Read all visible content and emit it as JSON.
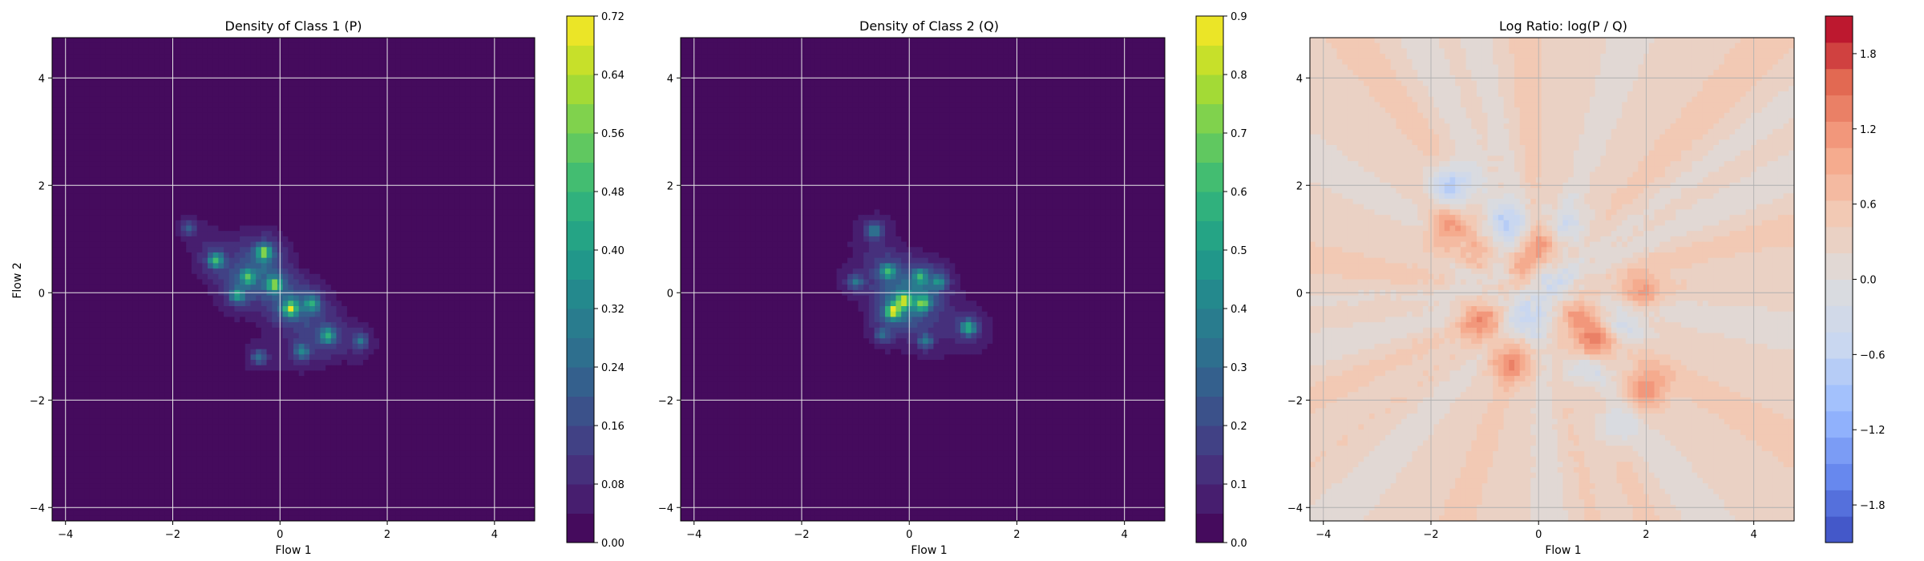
{
  "figure": {
    "background": "#ffffff"
  },
  "chart_data": [
    {
      "type": "heatmap",
      "title": "Density of Class 1 (P)",
      "xlabel": "Flow 1",
      "ylabel": "Flow 2",
      "xlim": [
        -4.25,
        4.75
      ],
      "ylim": [
        -4.25,
        4.75
      ],
      "xticks": [
        -4,
        -2,
        0,
        2,
        4
      ],
      "yticks": [
        -4,
        -2,
        0,
        2,
        4
      ],
      "grid": true,
      "colormap": "viridis",
      "colorbar": {
        "min": 0.0,
        "max": 0.72,
        "ticks": [
          "0.00",
          "0.08",
          "0.16",
          "0.24",
          "0.32",
          "0.40",
          "0.48",
          "0.56",
          "0.64",
          "0.72"
        ],
        "levels": 18
      },
      "background_color": "#440154",
      "density_modes": [
        {
          "x": -1.2,
          "y": 0.6,
          "peak": 0.45
        },
        {
          "x": -0.3,
          "y": 0.75,
          "peak": 0.55
        },
        {
          "x": -0.6,
          "y": 0.3,
          "peak": 0.4
        },
        {
          "x": -0.1,
          "y": 0.15,
          "peak": 0.5
        },
        {
          "x": 0.2,
          "y": -0.3,
          "peak": 0.55
        },
        {
          "x": -0.8,
          "y": -0.05,
          "peak": 0.35
        },
        {
          "x": 0.6,
          "y": -0.2,
          "peak": 0.35
        },
        {
          "x": 0.9,
          "y": -0.8,
          "peak": 0.4
        },
        {
          "x": 0.4,
          "y": -1.1,
          "peak": 0.3
        },
        {
          "x": -0.4,
          "y": -1.2,
          "peak": 0.25
        },
        {
          "x": 1.5,
          "y": -0.9,
          "peak": 0.25
        },
        {
          "x": -1.7,
          "y": 1.2,
          "peak": 0.18
        }
      ]
    },
    {
      "type": "heatmap",
      "title": "Density of Class 2 (Q)",
      "xlabel": "Flow 1",
      "ylabel": "",
      "xlim": [
        -4.25,
        4.75
      ],
      "ylim": [
        -4.25,
        4.75
      ],
      "xticks": [
        -4,
        -2,
        0,
        2,
        4
      ],
      "yticks": [
        -4,
        -2,
        0,
        2,
        4
      ],
      "grid": true,
      "colormap": "viridis",
      "colorbar": {
        "min": 0.0,
        "max": 0.9,
        "ticks": [
          "0.0",
          "0.1",
          "0.2",
          "0.3",
          "0.4",
          "0.5",
          "0.6",
          "0.7",
          "0.8",
          "0.9"
        ],
        "levels": 18
      },
      "background_color": "#440154",
      "density_modes": [
        {
          "x": -0.65,
          "y": 1.15,
          "peak": 0.35
        },
        {
          "x": -0.4,
          "y": 0.4,
          "peak": 0.55
        },
        {
          "x": 0.2,
          "y": 0.3,
          "peak": 0.45
        },
        {
          "x": -0.1,
          "y": -0.15,
          "peak": 0.6
        },
        {
          "x": -0.3,
          "y": -0.35,
          "peak": 0.75
        },
        {
          "x": 0.25,
          "y": -0.2,
          "peak": 0.55
        },
        {
          "x": 0.55,
          "y": 0.2,
          "peak": 0.35
        },
        {
          "x": 1.1,
          "y": -0.65,
          "peak": 0.55
        },
        {
          "x": -1.0,
          "y": 0.2,
          "peak": 0.3
        },
        {
          "x": 0.3,
          "y": -0.9,
          "peak": 0.3
        },
        {
          "x": -0.5,
          "y": -0.8,
          "peak": 0.25
        }
      ]
    },
    {
      "type": "heatmap",
      "title": "Log Ratio: log(P / Q)",
      "xlabel": "Flow 1",
      "ylabel": "",
      "xlim": [
        -4.25,
        4.75
      ],
      "ylim": [
        -4.25,
        4.75
      ],
      "xticks": [
        -4,
        -2,
        0,
        2,
        4
      ],
      "yticks": [
        -4,
        -2,
        0,
        2,
        4
      ],
      "grid": true,
      "colormap": "coolwarm",
      "colorbar": {
        "min": -2.1,
        "max": 2.1,
        "ticks": [
          "-1.8",
          "-1.2",
          "-0.6",
          "0.0",
          "0.6",
          "1.2",
          "1.8"
        ],
        "tick_values": [
          -1.8,
          -1.2,
          -0.6,
          0.0,
          0.6,
          1.2,
          1.8
        ],
        "levels": 20
      },
      "background_value": 0.3,
      "hotspots": [
        {
          "x": -1.6,
          "y": 2.0,
          "value": -1.2
        },
        {
          "x": -0.6,
          "y": 1.3,
          "value": -0.8
        },
        {
          "x": 0.5,
          "y": 1.2,
          "value": -0.6
        },
        {
          "x": -1.2,
          "y": 0.4,
          "value": -0.9
        },
        {
          "x": -0.7,
          "y": 0.6,
          "value": -0.9
        },
        {
          "x": 0.3,
          "y": 0.2,
          "value": -0.6
        },
        {
          "x": 0.9,
          "y": -1.3,
          "value": -0.9
        },
        {
          "x": 1.6,
          "y": -0.6,
          "value": -0.6
        },
        {
          "x": -0.2,
          "y": -0.5,
          "value": -0.7
        },
        {
          "x": 1.4,
          "y": -2.5,
          "value": -0.5
        },
        {
          "x": -1.1,
          "y": 0.6,
          "value": 1.5
        },
        {
          "x": -1.7,
          "y": 1.2,
          "value": 0.9
        },
        {
          "x": -0.4,
          "y": 0.5,
          "value": 1.0
        },
        {
          "x": -1.1,
          "y": -0.5,
          "value": 1.0
        },
        {
          "x": 1.0,
          "y": -1.0,
          "value": 1.5
        },
        {
          "x": -0.5,
          "y": -1.3,
          "value": 1.0
        },
        {
          "x": 0.7,
          "y": -0.4,
          "value": 0.8
        },
        {
          "x": 2.0,
          "y": -1.8,
          "value": 1.0
        },
        {
          "x": 1.9,
          "y": 0.0,
          "value": 0.8
        },
        {
          "x": 0.1,
          "y": 0.9,
          "value": 0.9
        }
      ]
    }
  ]
}
